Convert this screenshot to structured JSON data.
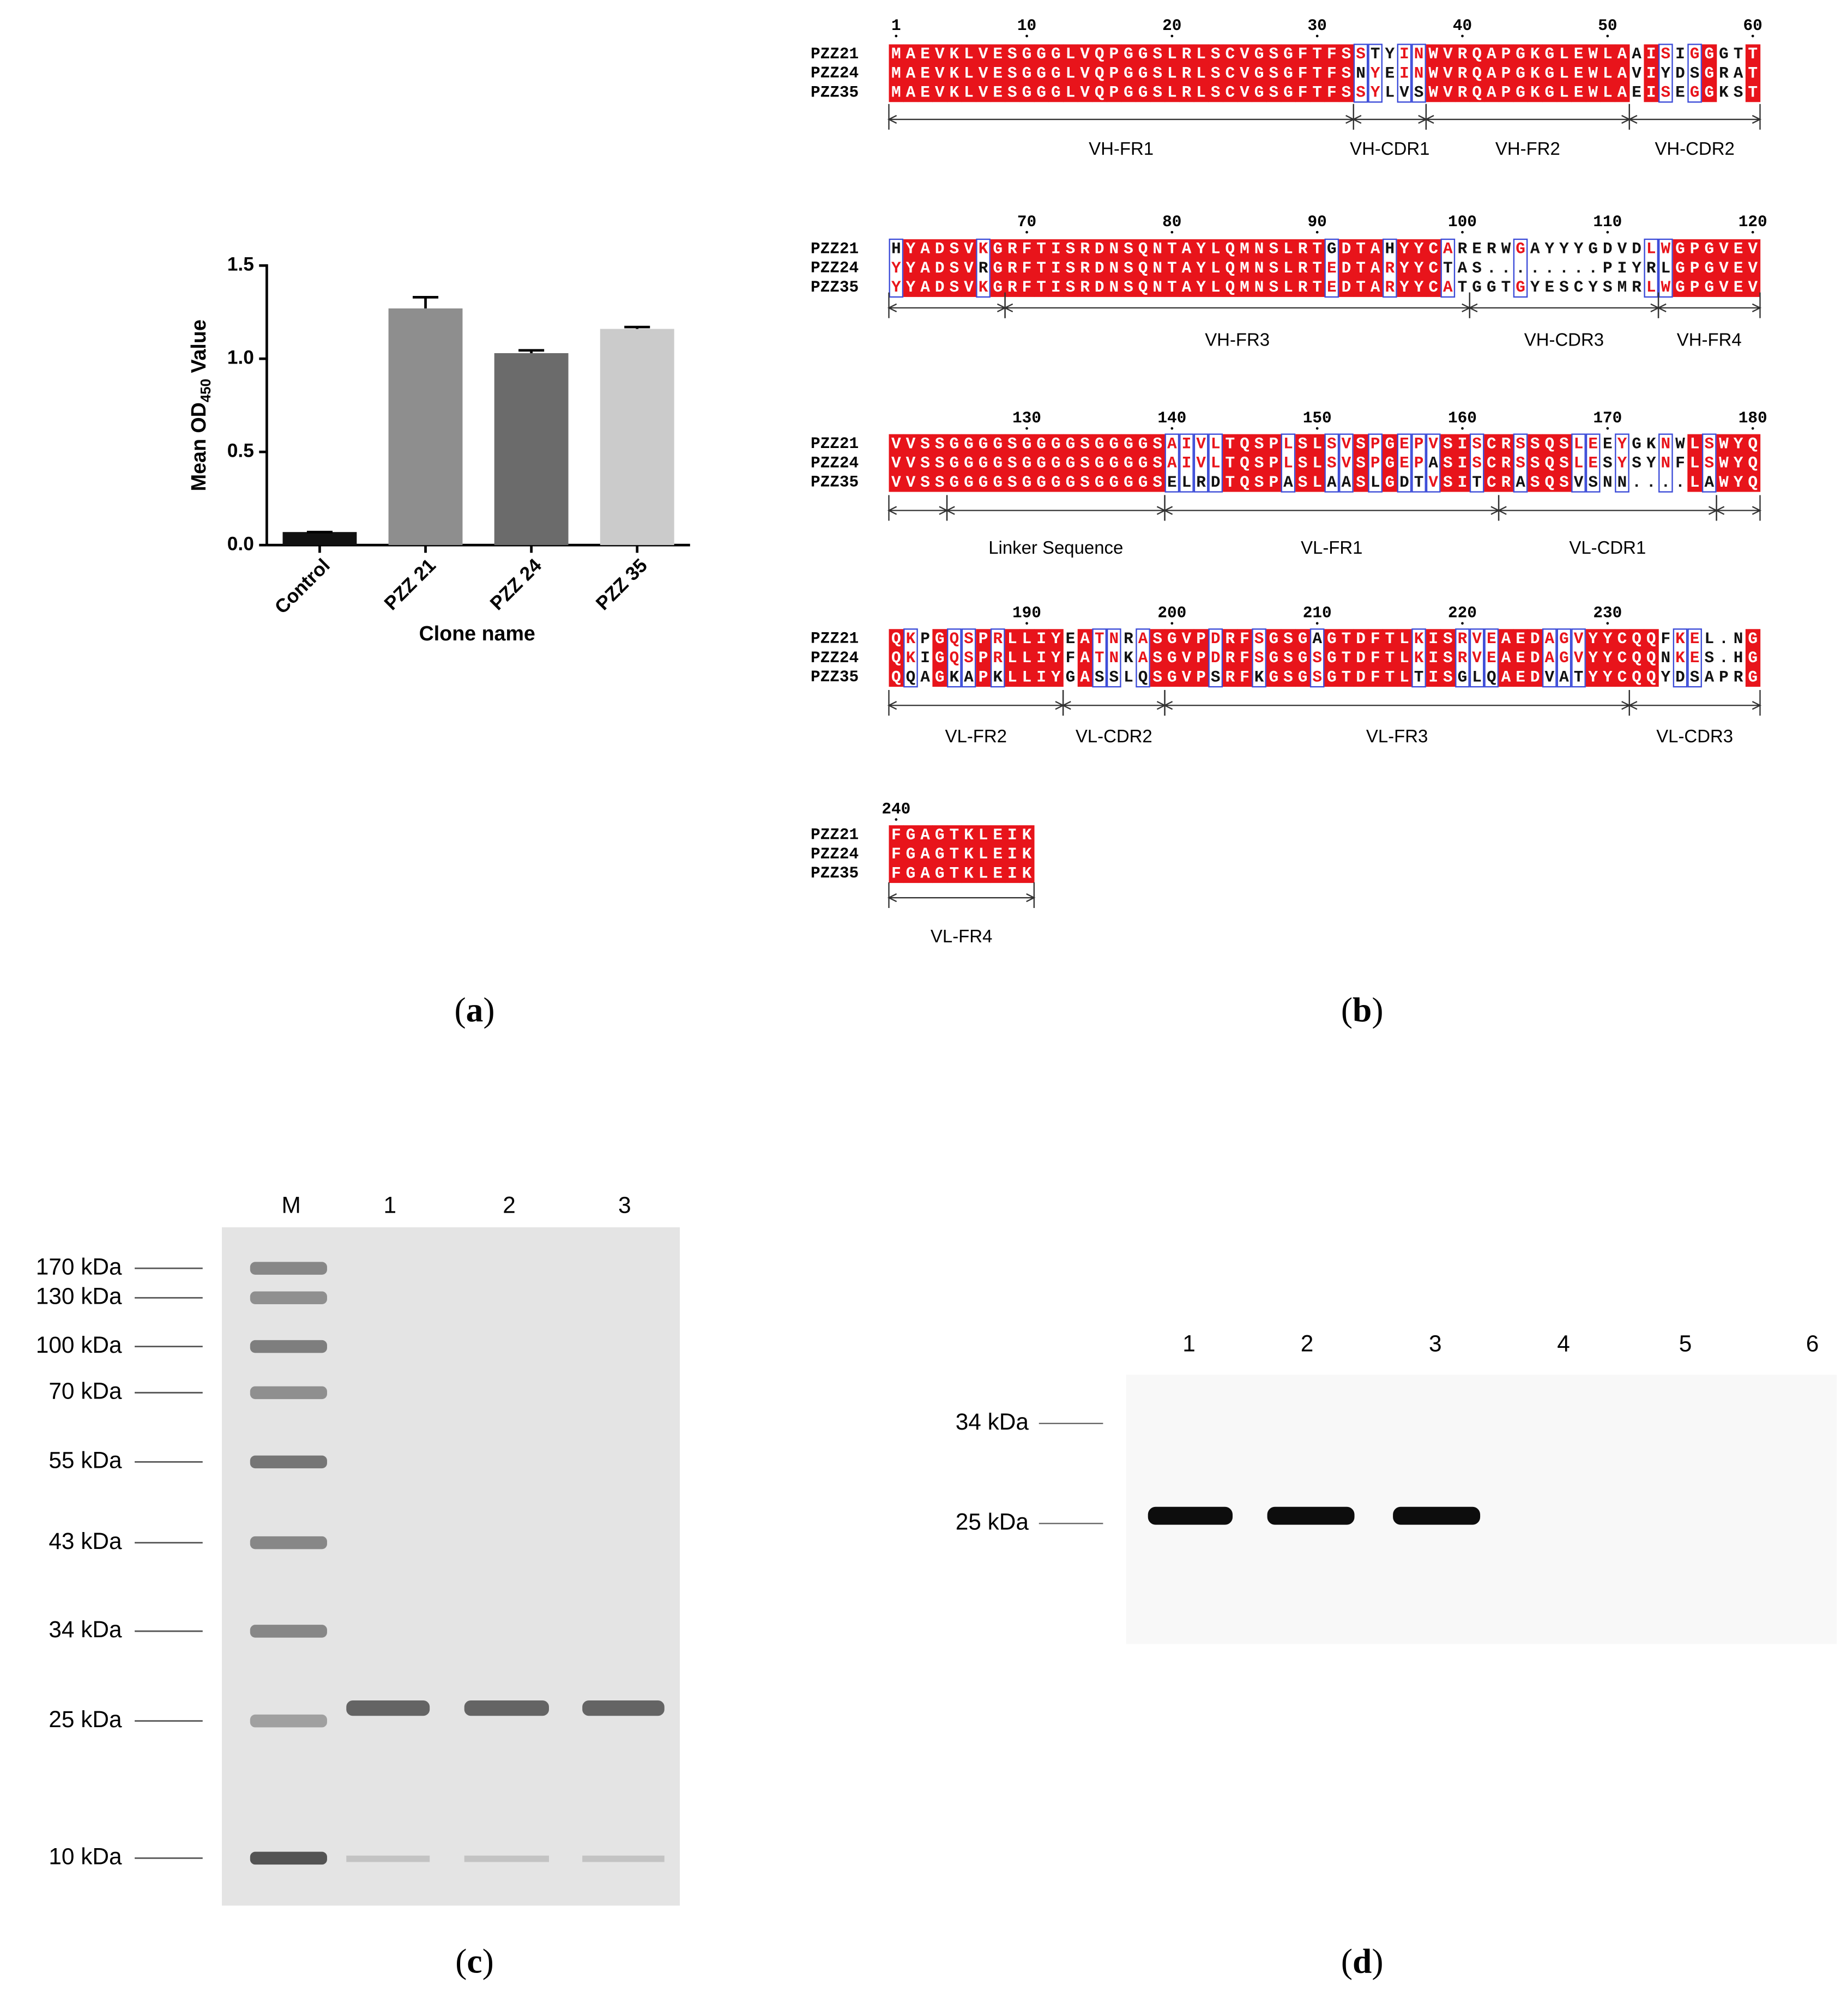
{
  "chart_data": {
    "type": "bar",
    "y_label": {
      "text": "Mean OD",
      "subscript": "450",
      "suffix": " Value"
    },
    "x_label": "Clone name",
    "categories": [
      "Control",
      "PZZ 21",
      "PZZ 24",
      "PZZ 35"
    ],
    "values": [
      0.07,
      1.27,
      1.03,
      1.16
    ],
    "errors": [
      0,
      0.06,
      0.015,
      0.01
    ],
    "colors": [
      "#111111",
      "#8e8e8e",
      "#6b6b6b",
      "#cbcbcb"
    ],
    "ylim": [
      0,
      1.5
    ],
    "yticks": [
      {
        "value": 0,
        "label": "0.0"
      },
      0.5,
      {
        "value": 1,
        "label": "1.0"
      },
      1.5
    ]
  },
  "alignment": {
    "names": [
      "PZZ21",
      "PZZ24",
      "PZZ35"
    ],
    "blocks": [
      {
        "ruler": [
          1,
          10,
          20,
          30,
          40,
          50,
          60
        ],
        "sequences": [
          "MAEVKLVESGGGLVQPGGSLRLSCVGSGFTFSSTYINWVRQAPGKGLEWLAAISIGGGTT",
          "MAEVKLVESGGGLVQPGGSLRLSCVGSGFTFSNYEINWVRQAPGKGLEWLAVIYDSGRAT",
          "MAEVKLVESGGGLVQPGGSLRLSCVGSGFTFSSYLVSWVRQAPGKGLEWLAEISEGGKST"
        ],
        "regions": [
          "VH-FR1",
          "VH-CDR1",
          "VH-FR2",
          "VH-CDR2"
        ]
      },
      {
        "ruler": [
          70,
          80,
          90,
          100,
          110,
          120
        ],
        "sequences": [
          "HYADSVKGRFTISRDNSQNTAYLQMNSLRTGDTAHYYCARERWGAYYYGDVDLWGPGVEV",
          "YYADSVRGRFTISRDNSQNTAYLQMNSLRTEDTARYYCTAS........PIYRLGPGVEV",
          "YYADSVKGRFTISRDNSQNTAYLQMNSLRTEDTARYYCATGGTGYESCYSMRLWGPGVEV"
        ],
        "regions": [
          "VH-FR3",
          "VH-CDR3",
          "VH-FR4"
        ]
      },
      {
        "ruler": [
          130,
          140,
          150,
          160,
          170,
          180
        ],
        "sequences": [
          "VVSSGGGGSGGGGSGGGGSAIVLTQSPLSLSVSPGEPVSISCRSSQSLEEYGKNWLSWYQ",
          "VVSSGGGGSGGGGSGGGGSAIVLTQSPLSLSVSPGEPASISCRSSQSLESYSYNFLSWYQ",
          "VVSSGGGGSGGGGSGGGGSELRDTQSPASLAASLGDTVSITCRASQSVSNN....LAWYQ"
        ],
        "regions": [
          "Linker Sequence",
          "VL-FR1",
          "VL-CDR1"
        ]
      },
      {
        "ruler": [
          190,
          200,
          210,
          220,
          230
        ],
        "sequences": [
          "QKPGQSPRLLIYEATNRASGVPDRFSGSGAGTDFTLKISRVEAEDAGVYYCQQFKEL.NG",
          "QKIGQSPRLLIYFATNKASGVPDRFSGSGSGTDFTLKISRVEAEDAGVYYCQQNKES.HG",
          "QQAGKAPKLLIYGASSLQSGVPSRFKGSGSGTDFTLTISGLQAEDVATYYCQQYDSAPRG"
        ],
        "regions": [
          "VL-FR2",
          "VL-CDR2",
          "VL-FR3",
          "VL-CDR3"
        ]
      },
      {
        "ruler": [
          240
        ],
        "sequences": [
          "FGAGTKLEIK",
          "FGAGTKLEIK",
          "FGAGTKLEIK"
        ],
        "regions": [
          "VL-FR4"
        ]
      }
    ]
  },
  "gel": {
    "lanes": [
      "M",
      "1",
      "2",
      "3"
    ],
    "markers": [
      "170 kDa",
      "130 kDa",
      "100 kDa",
      "70 kDa",
      "55 kDa",
      "43 kDa",
      "34 kDa",
      "25 kDa",
      "10 kDa"
    ]
  },
  "blot": {
    "lanes": [
      "1",
      "2",
      "3",
      "4",
      "5",
      "6"
    ],
    "markers": [
      "34 kDa",
      "25 kDa"
    ]
  },
  "panel_labels": [
    "(a)",
    "(b)",
    "(c)",
    "(d)"
  ]
}
